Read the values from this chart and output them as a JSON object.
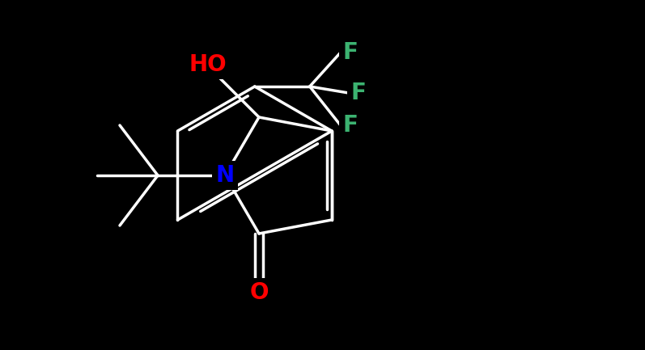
{
  "background_color": "#000000",
  "bond_color": "#ffffff",
  "bond_width": 2.5,
  "atom_colors": {
    "N": "#0000ff",
    "O_red": "#ff0000",
    "F": "#3cb371"
  },
  "font_size_atom": 18,
  "figsize": [
    7.97,
    4.33
  ],
  "dpi": 100
}
